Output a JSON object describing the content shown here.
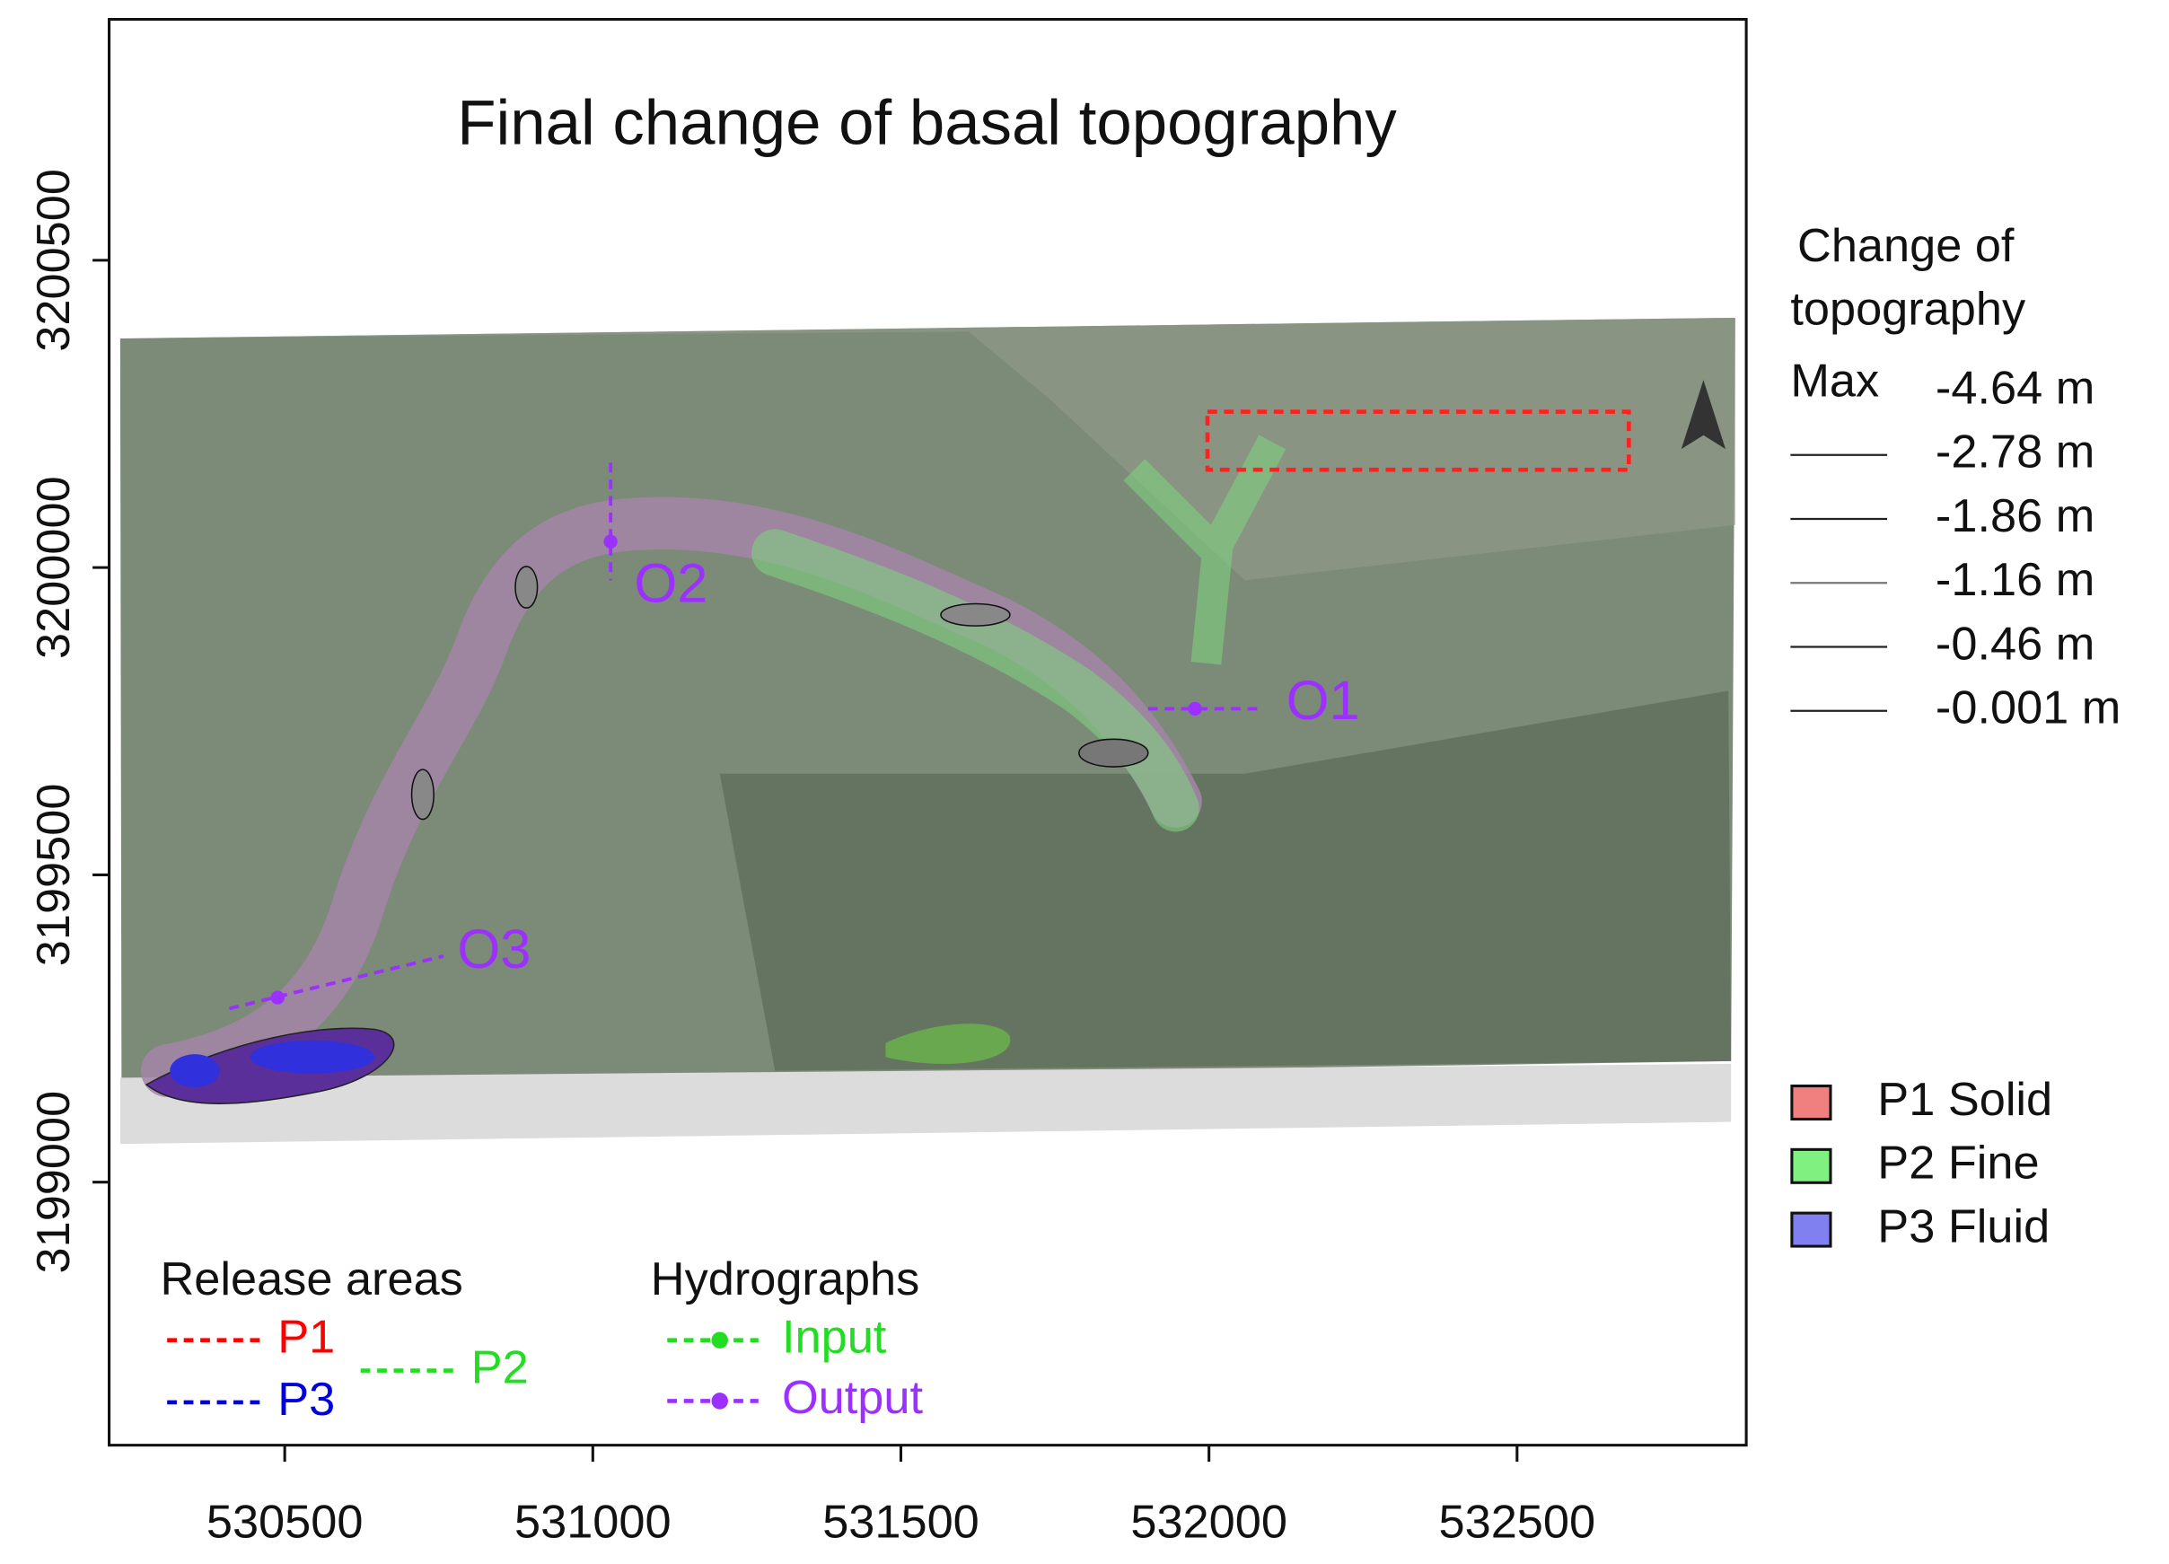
{
  "title": "Final change of basal topography",
  "axes": {
    "xlim": [
      530215,
      532872
    ],
    "ylim": [
      3198572,
      3200892
    ],
    "xticks": [
      530500,
      531000,
      531500,
      532000,
      532500
    ],
    "yticks": [
      3199000,
      3199500,
      3200000,
      3200500
    ]
  },
  "topography_legend": {
    "title": [
      "Change of",
      "topography"
    ],
    "max_label": "Max",
    "levels": [
      "-4.64  m",
      "-2.78  m",
      "-1.86  m",
      "-1.16  m",
      "-0.46  m",
      "-0.001  m"
    ]
  },
  "phase_legend": [
    {
      "label": "P1 Solid",
      "color": "#f08080"
    },
    {
      "label": "P2 Fine",
      "color": "#80f080"
    },
    {
      "label": "P3 Fluid",
      "color": "#8080f0"
    }
  ],
  "release_areas": {
    "title": "Release areas",
    "items": [
      {
        "label": "P1",
        "color": "#ff0000"
      },
      {
        "label": "P3",
        "color": "#0000dd"
      },
      {
        "label": "P2",
        "color": "#22dd22"
      }
    ]
  },
  "hydrographs": {
    "title": "Hydrographs",
    "items": [
      {
        "label": "Input",
        "color": "#22dd22"
      },
      {
        "label": "Output",
        "color": "#9b30ff"
      }
    ]
  },
  "map_labels": [
    "O1",
    "O2",
    "O3"
  ]
}
